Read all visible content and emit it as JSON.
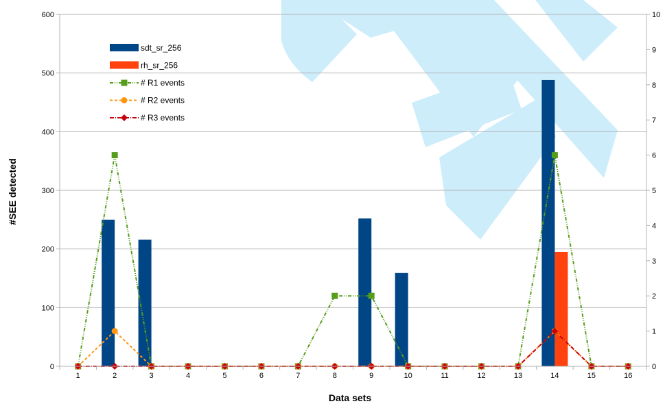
{
  "chart_data": {
    "type": "bar",
    "title": "",
    "xlabel": "Data sets",
    "ylabel": "#SEE detected",
    "categories": [
      "1",
      "2",
      "3",
      "4",
      "5",
      "6",
      "7",
      "8",
      "9",
      "10",
      "11",
      "12",
      "13",
      "14",
      "15",
      "16"
    ],
    "ylim": [
      0,
      600
    ],
    "yticks": [
      "0",
      "100",
      "200",
      "300",
      "400",
      "500",
      "600"
    ],
    "y2lim": [
      0,
      10
    ],
    "y2ticks": [
      "0",
      "1",
      "2",
      "3",
      "4",
      "5",
      "6",
      "7",
      "8",
      "9",
      "10"
    ],
    "grid": true,
    "legend_position": "top-left",
    "bar_series": [
      {
        "name": "sdt_sr_256",
        "color": "#004586",
        "axis": "left",
        "values": [
          0,
          250,
          216,
          0,
          0,
          0,
          0,
          0,
          252,
          159,
          0,
          0,
          0,
          488,
          0,
          0
        ]
      },
      {
        "name": "rh_sr_256",
        "color": "#ff420e",
        "axis": "left",
        "values": [
          0,
          0,
          0,
          0,
          0,
          0,
          0,
          0,
          0,
          0,
          0,
          0,
          0,
          195,
          0,
          0
        ]
      }
    ],
    "line_series": [
      {
        "name": "# R1 events",
        "color": "#579d1c",
        "marker": "square",
        "axis": "right",
        "values": [
          0,
          6,
          0,
          0,
          0,
          0,
          0,
          2,
          2,
          0,
          0,
          0,
          0,
          6,
          0,
          0
        ]
      },
      {
        "name": "# R2 events",
        "color": "#ff950e",
        "marker": "circle",
        "axis": "right",
        "values": [
          0,
          1,
          0,
          0,
          0,
          0,
          0,
          0,
          0,
          0,
          0,
          0,
          0,
          1,
          0,
          0
        ]
      },
      {
        "name": "# R3 events",
        "color": "#c5000b",
        "marker": "diamond",
        "axis": "right",
        "values": [
          0,
          0,
          0,
          0,
          0,
          0,
          0,
          0,
          0,
          0,
          0,
          0,
          0,
          1,
          0,
          0
        ]
      }
    ]
  }
}
